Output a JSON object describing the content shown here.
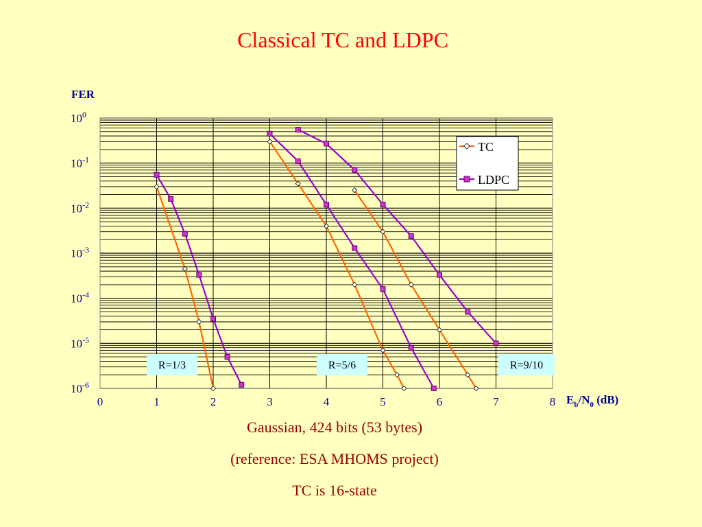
{
  "slide": {
    "title": "Classical TC and LDPC",
    "captions": [
      "Gaussian, 424 bits (53 bytes)",
      "(reference: ESA MHOMS project)",
      "TC is 16-state"
    ]
  },
  "chart_data": {
    "type": "line",
    "ylabel": "FER",
    "xlabel": {
      "base": "E",
      "sub1": "b",
      "sep": "/N",
      "sub2": "0",
      "unit": " (dB)"
    },
    "xlim": [
      0,
      8
    ],
    "x_ticks": [
      "0",
      "1",
      "2",
      "3",
      "4",
      "5",
      "6",
      "7",
      "8"
    ],
    "y_scale": "log",
    "ylim": [
      1e-06,
      1
    ],
    "y_ticks": [
      {
        "base": "10",
        "exp": "0"
      },
      {
        "base": "10",
        "exp": "-1"
      },
      {
        "base": "10",
        "exp": "-2"
      },
      {
        "base": "10",
        "exp": "-3"
      },
      {
        "base": "10",
        "exp": "-4"
      },
      {
        "base": "10",
        "exp": "-5"
      },
      {
        "base": "10",
        "exp": "-6"
      }
    ],
    "grid": true,
    "legend": {
      "position": "top-right",
      "entries": [
        {
          "name": "TC",
          "color": "#FF6600",
          "marker": "diamond"
        },
        {
          "name": "LDPC",
          "color": "#9900CC",
          "marker": "square"
        }
      ]
    },
    "series": [
      {
        "legend": "TC",
        "x": [
          1,
          1.5,
          1.75,
          2
        ],
        "y": [
          0.03,
          0.00045,
          3e-05,
          1e-06
        ]
      },
      {
        "legend": "LDPC",
        "x": [
          1,
          1.25,
          1.5,
          1.75,
          2,
          2.25,
          2.5
        ],
        "y": [
          0.055,
          0.016,
          0.0027,
          0.00033,
          3.5e-05,
          5e-06,
          1.2e-06
        ]
      },
      {
        "legend": "TC",
        "x": [
          3,
          3.5,
          4,
          4.5,
          5,
          5.25,
          5.375
        ],
        "y": [
          0.3,
          0.035,
          0.004,
          0.0002,
          7e-06,
          2e-06,
          1e-06
        ]
      },
      {
        "legend": "LDPC",
        "x": [
          3,
          3.5,
          4,
          4.5,
          5,
          5.5,
          5.9
        ],
        "y": [
          0.45,
          0.11,
          0.012,
          0.0013,
          0.00016,
          8e-06,
          1e-06
        ]
      },
      {
        "legend": "TC",
        "x": [
          4.5,
          5,
          5.5,
          6,
          6.5,
          6.65
        ],
        "y": [
          0.025,
          0.003,
          0.0002,
          2e-05,
          2e-06,
          1e-06
        ]
      },
      {
        "legend": "LDPC",
        "x": [
          3.5,
          4,
          4.5,
          5,
          5.5,
          6,
          6.5,
          7
        ],
        "y": [
          0.55,
          0.27,
          0.07,
          0.012,
          0.0024,
          0.00033,
          5e-05,
          1e-05
        ]
      }
    ],
    "annotations": [
      {
        "text": "R=1/3",
        "x": 1.4
      },
      {
        "text": "R=5/6",
        "x": 4.25
      },
      {
        "text": "R=9/10",
        "x": 7.55
      }
    ]
  },
  "colors": {
    "background": "#FFFFC0",
    "title": "#FF0000",
    "caption": "#990000",
    "axis_text": "#000099",
    "tc": "#FF6600",
    "ldpc": "#9900CC",
    "rate_box": "#CCFFFF"
  }
}
